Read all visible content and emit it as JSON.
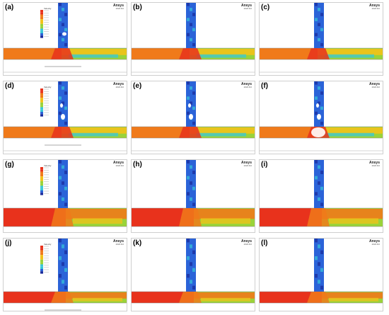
{
  "panels": [
    {
      "label": "(a)",
      "brand": "Ansys",
      "version": "2020 R2",
      "has_legend": true,
      "legend_title": "Velocity"
    },
    {
      "label": "(b)",
      "brand": "Ansys",
      "version": "2020 R2",
      "has_legend": false
    },
    {
      "label": "(c)",
      "brand": "Ansys",
      "version": "2020 R2",
      "has_legend": false
    },
    {
      "label": "(d)",
      "brand": "Ansys",
      "version": "2020 R2",
      "has_legend": true,
      "legend_title": "Velocity"
    },
    {
      "label": "(e)",
      "brand": "Ansys",
      "version": "2020 R2",
      "has_legend": false
    },
    {
      "label": "(f)",
      "brand": "Ansys",
      "version": "2020 R2",
      "has_legend": false
    },
    {
      "label": "(g)",
      "brand": "Ansys",
      "version": "2020 R2",
      "has_legend": true,
      "legend_title": "Velocity"
    },
    {
      "label": "(h)",
      "brand": "Ansys",
      "version": "2020 R2",
      "has_legend": false
    },
    {
      "label": "(i)",
      "brand": "Ansys",
      "version": "2020 R2",
      "has_legend": false
    },
    {
      "label": "(j)",
      "brand": "Ansys",
      "version": "2020 R2",
      "has_legend": true,
      "legend_title": "Velocity"
    },
    {
      "label": "(k)",
      "brand": "Ansys",
      "version": "2020 R2",
      "has_legend": false
    },
    {
      "label": "(l)",
      "brand": "Ansys",
      "version": "2020 R2",
      "has_legend": false
    }
  ],
  "colors": {
    "red": "#e8321c",
    "orange": "#f07a1a",
    "yellow": "#f2c21a",
    "green": "#9ad33a",
    "cyan": "#39c7d8",
    "blue": "#2b63d8",
    "navy": "#1a2a9a"
  }
}
